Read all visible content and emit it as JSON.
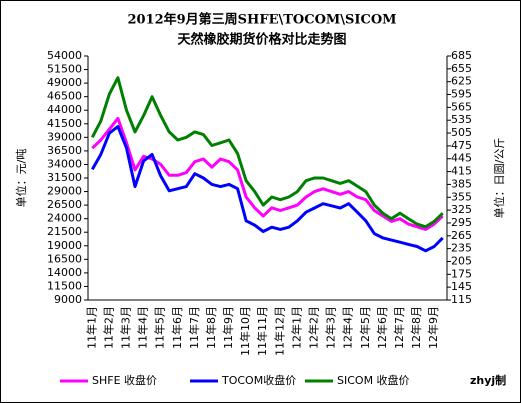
{
  "chart_data": {
    "type": "line",
    "title": "2012年9月第三周SHFE\\TOCOM\\SICOM",
    "subtitle": "天然橡胶期货价格对比走势图",
    "y_label": "单位：元/吨",
    "y2_label": "单位：日圆/公斤",
    "credit": "zhyj制",
    "categories": [
      "11年1月",
      null,
      "11年2月",
      null,
      "11年3月",
      null,
      "11年4月",
      null,
      "11年5月",
      null,
      "11年6月",
      null,
      "11年7月",
      null,
      "11年8月",
      null,
      "11年9月",
      null,
      "11年10月",
      null,
      "11年11月",
      null,
      "11年12月",
      null,
      "12年1月",
      null,
      "12年2月",
      null,
      "12年3月",
      null,
      "12年4月",
      null,
      "12年5月",
      null,
      "12年6月",
      null,
      "12年7月",
      null,
      "12年8月",
      null,
      "12年9月",
      null
    ],
    "series": [
      {
        "name": "SHFE 收盘价",
        "color": "#ff00ff",
        "values": [
          37000,
          38500,
          40500,
          42500,
          38000,
          33000,
          35500,
          35000,
          34000,
          32000,
          32000,
          32500,
          34500,
          35000,
          33500,
          35000,
          34500,
          33000,
          28000,
          26000,
          24500,
          26000,
          25500,
          26000,
          26500,
          28000,
          29000,
          29500,
          29000,
          28500,
          29000,
          28000,
          27500,
          25500,
          24500,
          23500,
          24000,
          23000,
          22500,
          22000,
          23000,
          24500
        ]
      },
      {
        "name": "TOCOM收盘价",
        "color": "#0000ff",
        "axis": "y2",
        "values": [
          420,
          455,
          505,
          520,
          470,
          380,
          440,
          455,
          405,
          370,
          375,
          380,
          410,
          400,
          385,
          380,
          385,
          375,
          300,
          290,
          275,
          285,
          280,
          285,
          300,
          320,
          330,
          340,
          335,
          330,
          340,
          320,
          300,
          270,
          260,
          255,
          250,
          245,
          240,
          230,
          240,
          260
        ]
      },
      {
        "name": "SICOM 收盘价",
        "color": "#008000",
        "values": [
          39000,
          42000,
          47000,
          50000,
          44000,
          40000,
          43000,
          46500,
          43000,
          40000,
          38500,
          39000,
          40000,
          39500,
          37500,
          38000,
          38500,
          36000,
          31000,
          29000,
          26500,
          28000,
          27500,
          28000,
          29000,
          31000,
          31500,
          31500,
          31000,
          30500,
          31000,
          30000,
          29000,
          26500,
          25000,
          24000,
          25000,
          24000,
          23000,
          22500,
          23500,
          25000
        ]
      }
    ],
    "ylim": [
      9000,
      54000
    ],
    "yticks": [
      9000,
      11500,
      14000,
      16500,
      19000,
      21500,
      24000,
      26500,
      29000,
      31500,
      34000,
      36500,
      39000,
      41500,
      44000,
      46500,
      49000,
      51500,
      54000
    ],
    "y2lim": [
      115,
      685
    ],
    "y2ticks": [
      115,
      145,
      175,
      205,
      235,
      265,
      295,
      325,
      355,
      385,
      415,
      445,
      475,
      505,
      535,
      565,
      595,
      625,
      655,
      685
    ],
    "grid": false
  }
}
